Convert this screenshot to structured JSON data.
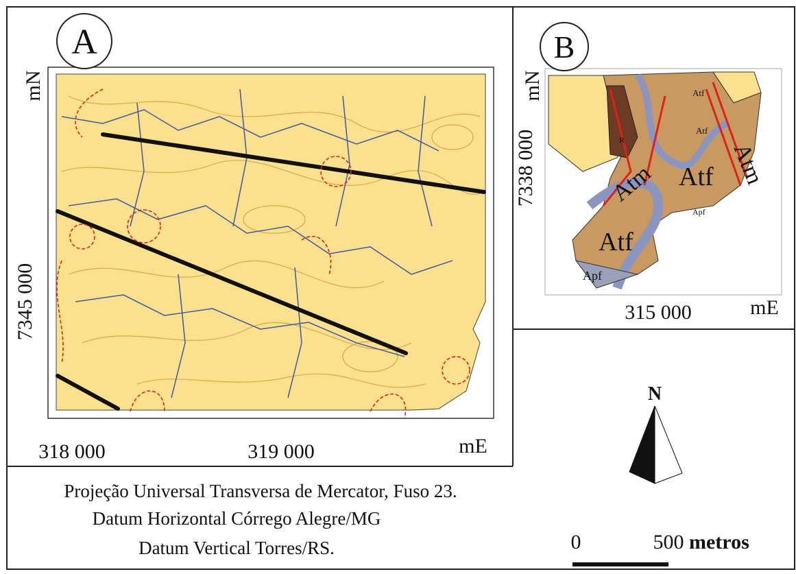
{
  "panel_a": {
    "label": "A",
    "y_unit": "mN",
    "y_coord": "7345 000",
    "x_coords": [
      "318 000",
      "319 000"
    ],
    "x_unit": "mE"
  },
  "panel_b": {
    "label": "B",
    "y_unit": "mN",
    "y_coord": "7338 000",
    "x_coord": "315 000",
    "x_unit": "mE",
    "units": [
      "Atf",
      "Atf",
      "R",
      "Atm",
      "Atm",
      "Atf",
      "Atf",
      "Apf",
      "Apf"
    ]
  },
  "north": "N",
  "scale": {
    "start": "0",
    "end": "500",
    "unit": "metros"
  },
  "caption": [
    "Projeção Universal Transversa de Mercator, Fuso 23.",
    "Datum Horizontal Córrego Alegre/MG",
    "Datum Vertical Torres/RS."
  ]
}
